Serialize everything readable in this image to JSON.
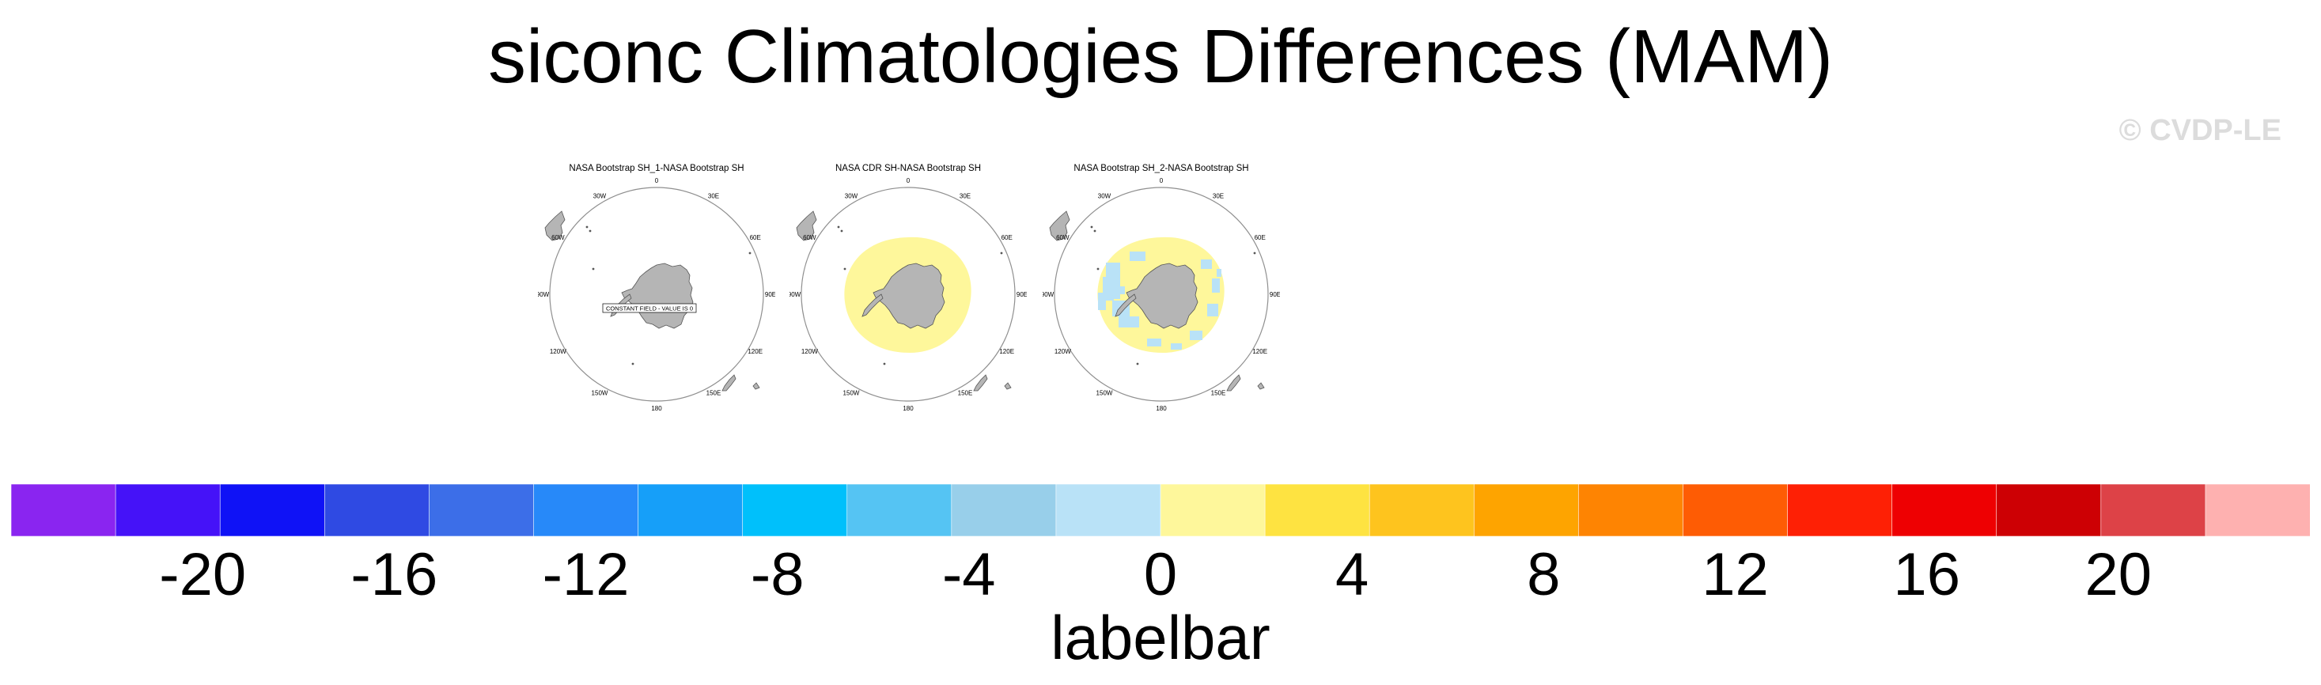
{
  "title": "siconc Climatologies Differences (MAM)",
  "watermark": "© CVDP-LE",
  "panels": [
    {
      "title": "NASA Bootstrap SH_1-NASA Bootstrap SH",
      "annotation": "CONSTANT FIELD - VALUE IS 0",
      "fill_pattern": "none"
    },
    {
      "title": "NASA CDR SH-NASA Bootstrap SH",
      "annotation": "",
      "fill_pattern": "yellow"
    },
    {
      "title": "NASA Bootstrap SH_2-NASA Bootstrap SH",
      "annotation": "",
      "fill_pattern": "mixed"
    }
  ],
  "longitude_labels": [
    "0",
    "30E",
    "60E",
    "90E",
    "120E",
    "150E",
    "180",
    "150W",
    "120W",
    "90W",
    "60W",
    "30W"
  ],
  "labelbar": {
    "title": "labelbar",
    "tick_labels": [
      "-20",
      "-16",
      "-12",
      "-8",
      "-4",
      "0",
      "4",
      "8",
      "12",
      "16",
      "20"
    ],
    "tick_values": [
      -20,
      -16,
      -12,
      -8,
      -4,
      0,
      4,
      8,
      12,
      16,
      20
    ],
    "bounds": [
      -24,
      24
    ],
    "colors": [
      "#8a25f0",
      "#4512f8",
      "#0f12f6",
      "#2f4ae3",
      "#3c6ee8",
      "#2789f9",
      "#169ff9",
      "#00c0fb",
      "#55c4f3",
      "#98cfea",
      "#b9e2f7",
      "#fef79b",
      "#fee341",
      "#fec41e",
      "#fea400",
      "#fe8402",
      "#fe5c04",
      "#fe2005",
      "#ee0002",
      "#cd0004",
      "#dd4247",
      "#feb1b0"
    ]
  }
}
